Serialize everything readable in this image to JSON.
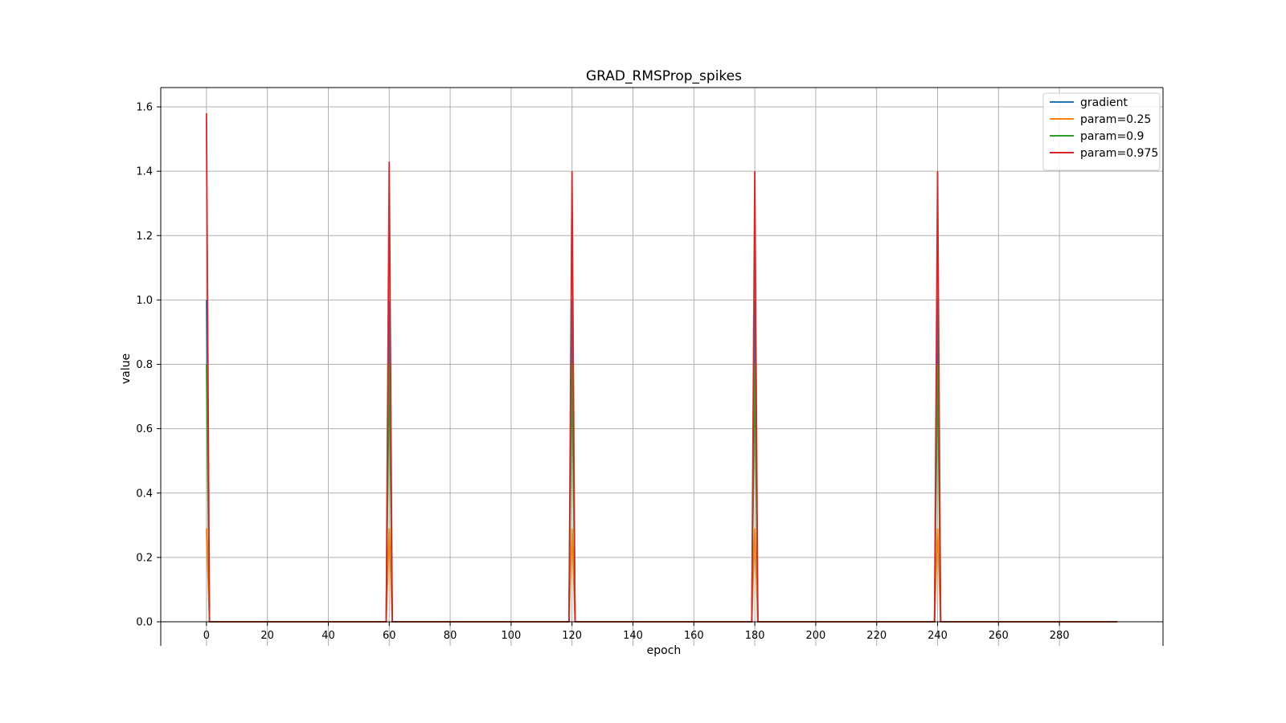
{
  "chart_data": {
    "type": "line",
    "title": "GRAD_RMSProp_spikes",
    "xlabel": "epoch",
    "ylabel": "value",
    "xlim": [
      -15,
      314
    ],
    "ylim": [
      0,
      1.66
    ],
    "xticks": [
      0,
      20,
      40,
      60,
      80,
      100,
      120,
      140,
      160,
      180,
      200,
      220,
      240,
      260,
      280
    ],
    "yticks": [
      0.0,
      0.2,
      0.4,
      0.6,
      0.8,
      1.0,
      1.2,
      1.4,
      1.6
    ],
    "xtick_labels": [
      "0",
      "20",
      "40",
      "60",
      "80",
      "100",
      "120",
      "140",
      "160",
      "180",
      "200",
      "220",
      "240",
      "260",
      "280"
    ],
    "ytick_labels": [
      "0.0",
      "0.2",
      "0.4",
      "0.6",
      "0.8",
      "1.0",
      "1.2",
      "1.4",
      "1.6"
    ],
    "grid": true,
    "legend_position": "top-right",
    "x_end": 299,
    "spike_epochs": [
      0,
      60,
      120,
      180,
      240
    ],
    "series": [
      {
        "name": "gradient",
        "color": "#1f77b4",
        "spike_values": [
          1.0,
          1.0,
          1.0,
          1.0,
          1.0
        ]
      },
      {
        "name": "param=0.25",
        "color": "#ff7f0e",
        "spike_values": [
          0.29,
          0.29,
          0.29,
          0.29,
          0.29
        ]
      },
      {
        "name": "param=0.9",
        "color": "#2ca02c",
        "spike_values": [
          0.8,
          0.8,
          0.8,
          0.8,
          0.8
        ]
      },
      {
        "name": "param=0.975",
        "color": "#d62728",
        "spike_values": [
          1.58,
          1.43,
          1.4,
          1.4,
          1.4
        ]
      }
    ]
  }
}
